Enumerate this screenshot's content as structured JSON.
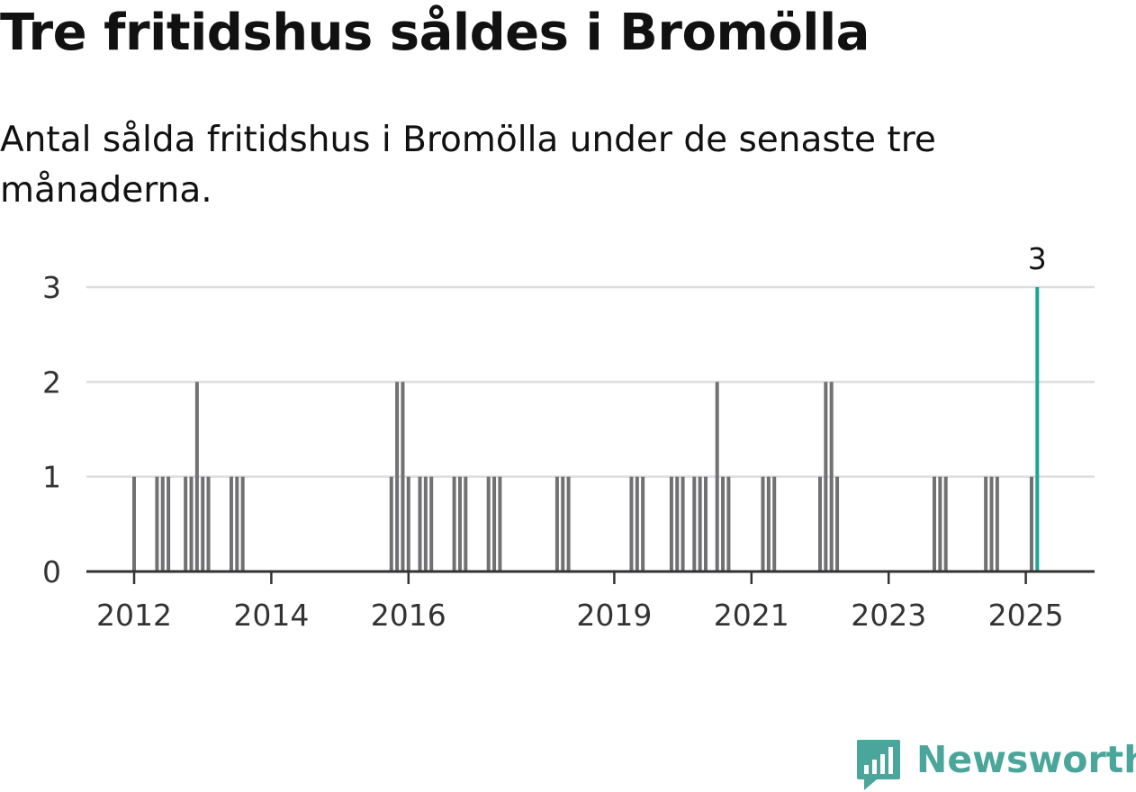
{
  "chart_data": {
    "type": "bar",
    "title": "Tre fritidshus såldes i Bromölla",
    "subtitle": "Antal sålda fritidshus i Bromölla under de senaste tre månaderna.",
    "xlabel": "",
    "ylabel": "",
    "ylim": [
      0,
      3
    ],
    "yticks": [
      0,
      1,
      2,
      3
    ],
    "xticks": [
      "2012",
      "2014",
      "2016",
      "2019",
      "2021",
      "2023",
      "2025"
    ],
    "grid": true,
    "highlight_label": "3",
    "colors": {
      "bar": "#717174",
      "highlight": "#1ba698",
      "grid": "#dddddd",
      "axis": "#333333"
    },
    "series": [
      {
        "values": [
          {
            "x": "2012-01",
            "y": 1
          },
          {
            "x": "2012-05",
            "y": 1
          },
          {
            "x": "2012-06",
            "y": 1
          },
          {
            "x": "2012-07",
            "y": 1
          },
          {
            "x": "2012-10",
            "y": 1
          },
          {
            "x": "2012-11",
            "y": 1
          },
          {
            "x": "2012-12",
            "y": 2
          },
          {
            "x": "2013-01",
            "y": 1
          },
          {
            "x": "2013-02",
            "y": 1
          },
          {
            "x": "2013-06",
            "y": 1
          },
          {
            "x": "2013-07",
            "y": 1
          },
          {
            "x": "2013-08",
            "y": 1
          },
          {
            "x": "2015-10",
            "y": 1
          },
          {
            "x": "2015-11",
            "y": 2
          },
          {
            "x": "2015-12",
            "y": 2
          },
          {
            "x": "2016-01",
            "y": 1
          },
          {
            "x": "2016-03",
            "y": 1
          },
          {
            "x": "2016-04",
            "y": 1
          },
          {
            "x": "2016-05",
            "y": 1
          },
          {
            "x": "2016-09",
            "y": 1
          },
          {
            "x": "2016-10",
            "y": 1
          },
          {
            "x": "2016-11",
            "y": 1
          },
          {
            "x": "2017-03",
            "y": 1
          },
          {
            "x": "2017-04",
            "y": 1
          },
          {
            "x": "2017-05",
            "y": 1
          },
          {
            "x": "2018-03",
            "y": 1
          },
          {
            "x": "2018-04",
            "y": 1
          },
          {
            "x": "2018-05",
            "y": 1
          },
          {
            "x": "2019-04",
            "y": 1
          },
          {
            "x": "2019-05",
            "y": 1
          },
          {
            "x": "2019-06",
            "y": 1
          },
          {
            "x": "2019-11",
            "y": 1
          },
          {
            "x": "2019-12",
            "y": 1
          },
          {
            "x": "2020-01",
            "y": 1
          },
          {
            "x": "2020-03",
            "y": 1
          },
          {
            "x": "2020-04",
            "y": 1
          },
          {
            "x": "2020-05",
            "y": 1
          },
          {
            "x": "2020-07",
            "y": 2
          },
          {
            "x": "2020-08",
            "y": 1
          },
          {
            "x": "2020-09",
            "y": 1
          },
          {
            "x": "2021-03",
            "y": 1
          },
          {
            "x": "2021-04",
            "y": 1
          },
          {
            "x": "2021-05",
            "y": 1
          },
          {
            "x": "2022-01",
            "y": 1
          },
          {
            "x": "2022-02",
            "y": 2
          },
          {
            "x": "2022-03",
            "y": 2
          },
          {
            "x": "2022-04",
            "y": 1
          },
          {
            "x": "2023-09",
            "y": 1
          },
          {
            "x": "2023-10",
            "y": 1
          },
          {
            "x": "2023-11",
            "y": 1
          },
          {
            "x": "2024-06",
            "y": 1
          },
          {
            "x": "2024-07",
            "y": 1
          },
          {
            "x": "2024-08",
            "y": 1
          },
          {
            "x": "2025-02",
            "y": 1
          },
          {
            "x": "2025-03",
            "y": 3,
            "highlight": true
          }
        ]
      }
    ]
  },
  "brand": {
    "name": "Newsworthy",
    "icon": "newsworthy-chart-icon",
    "color": "#4aa59a"
  }
}
